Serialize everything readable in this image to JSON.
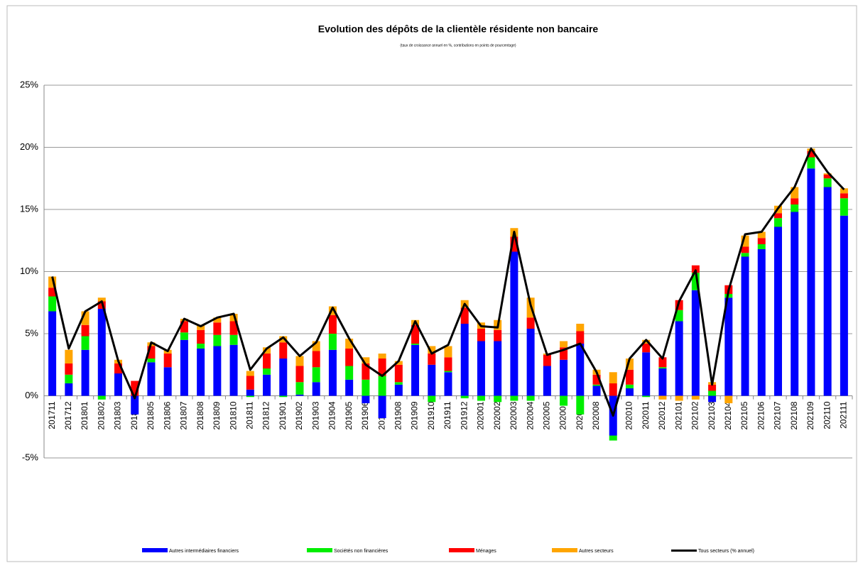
{
  "chart_data": {
    "type": "bar",
    "title": "Evolution des dépôts de la clientèle résidente non bancaire",
    "subtitle": "(taux de croissance annuel en %, contributions en points de pourcentage)",
    "categories": [
      "201711",
      "201712",
      "201801",
      "201802",
      "201803",
      "201804",
      "201805",
      "201806",
      "201807",
      "201808",
      "201809",
      "201810",
      "201811",
      "201812",
      "201901",
      "201902",
      "201903",
      "201904",
      "201905",
      "201906",
      "201907",
      "201908",
      "201909",
      "201910",
      "201911",
      "201912",
      "202001",
      "202002",
      "202003",
      "202004",
      "202005",
      "202006",
      "202007",
      "202008",
      "202009",
      "202010",
      "202011",
      "202012",
      "202101",
      "202102",
      "202103",
      "202104",
      "202105",
      "202106",
      "202107",
      "202108",
      "202109",
      "202110",
      "202111"
    ],
    "stacked": true,
    "series": [
      {
        "name": "Autres intermédiaires financiers",
        "color": "#0000ff",
        "type": "bar",
        "values": [
          6.8,
          1.0,
          3.7,
          7.0,
          1.8,
          -1.5,
          2.7,
          2.3,
          4.5,
          3.8,
          4.0,
          4.1,
          0.5,
          1.7,
          3.0,
          0.1,
          1.1,
          3.7,
          1.3,
          -0.6,
          -1.8,
          0.9,
          4.1,
          2.5,
          1.9,
          5.8,
          4.4,
          4.4,
          11.6,
          5.4,
          2.4,
          2.9,
          4.2,
          0.8,
          -3.2,
          0.6,
          3.5,
          2.2,
          6.0,
          8.5,
          -0.5,
          7.9,
          11.2,
          11.8,
          13.6,
          14.8,
          18.3,
          16.8,
          14.5
        ]
      },
      {
        "name": "Sociétés non financières",
        "color": "#00ee00",
        "type": "bar",
        "values": [
          1.2,
          0.7,
          1.1,
          -0.3,
          0,
          0,
          0.3,
          0,
          0.6,
          0.4,
          0.9,
          0.8,
          -0.1,
          0.5,
          -0.1,
          1.0,
          1.2,
          1.3,
          1.1,
          1.3,
          1.6,
          0.2,
          0.1,
          -0.5,
          0.1,
          -0.2,
          -0.4,
          -0.5,
          -0.4,
          -0.4,
          0,
          -0.8,
          -1.5,
          0.1,
          -0.4,
          0.3,
          -0.1,
          0.1,
          0.9,
          1.4,
          0.4,
          0.3,
          0.3,
          0.4,
          0.7,
          0.6,
          0.9,
          0.7,
          1.4
        ]
      },
      {
        "name": "Ménages",
        "color": "#ff0000",
        "type": "bar",
        "values": [
          0.7,
          0.9,
          0.9,
          0.6,
          0.8,
          1.2,
          1.0,
          1.1,
          0.9,
          1.1,
          1.0,
          1.1,
          1.1,
          1.2,
          1.3,
          1.3,
          1.3,
          1.5,
          1.4,
          1.3,
          1.4,
          1.4,
          1.5,
          0.9,
          1.1,
          1.3,
          1.0,
          0.9,
          1.2,
          0.9,
          0.9,
          1.0,
          1.0,
          0.8,
          1.0,
          1.2,
          0.7,
          0.8,
          0.8,
          0.6,
          0.5,
          0.7,
          0.5,
          0.5,
          0.4,
          0.5,
          0.5,
          0.3,
          0.4
        ]
      },
      {
        "name": "Autres secteurs",
        "color": "#ffa500",
        "type": "bar",
        "values": [
          0.9,
          1.1,
          1.1,
          0.3,
          0.3,
          0,
          0.3,
          0.3,
          0.2,
          0.4,
          0.4,
          0.6,
          0.4,
          0.5,
          0.5,
          0.8,
          0.8,
          0.7,
          0.8,
          0.5,
          0.4,
          0.3,
          0.4,
          0.6,
          0.9,
          0.6,
          0.5,
          0.8,
          0.7,
          1.6,
          0.1,
          0.5,
          0.6,
          0.4,
          0.9,
          0.9,
          0.3,
          -0.3,
          -0.4,
          -0.3,
          0.2,
          -0.6,
          0.9,
          0.5,
          0.6,
          0.9,
          0.2,
          0.1,
          0.4
        ]
      },
      {
        "name": "Tous secteurs (% annuel)",
        "color": "#000000",
        "type": "line",
        "values": [
          9.6,
          3.8,
          6.8,
          7.6,
          2.8,
          -0.2,
          4.3,
          3.6,
          6.2,
          5.6,
          6.3,
          6.6,
          2.1,
          3.8,
          4.7,
          3.2,
          4.3,
          7.1,
          4.6,
          2.5,
          1.6,
          2.8,
          6.0,
          3.4,
          4.1,
          7.4,
          5.6,
          5.5,
          13.2,
          7.3,
          3.3,
          3.7,
          4.2,
          1.9,
          -1.6,
          3.0,
          4.5,
          3.0,
          7.6,
          10.1,
          0.9,
          8.5,
          13.0,
          13.2,
          15.1,
          16.8,
          19.9,
          18.0,
          16.6
        ]
      }
    ],
    "ylim": [
      -5,
      25
    ],
    "yticks": [
      {
        "value": -5,
        "label": "-5%"
      },
      {
        "value": 0,
        "label": "0%"
      },
      {
        "value": 5,
        "label": "5%"
      },
      {
        "value": 10,
        "label": "10%"
      },
      {
        "value": 15,
        "label": "15%"
      },
      {
        "value": 20,
        "label": "20%"
      },
      {
        "value": 25,
        "label": "25%"
      }
    ],
    "grid": true,
    "legend": "bottom"
  }
}
